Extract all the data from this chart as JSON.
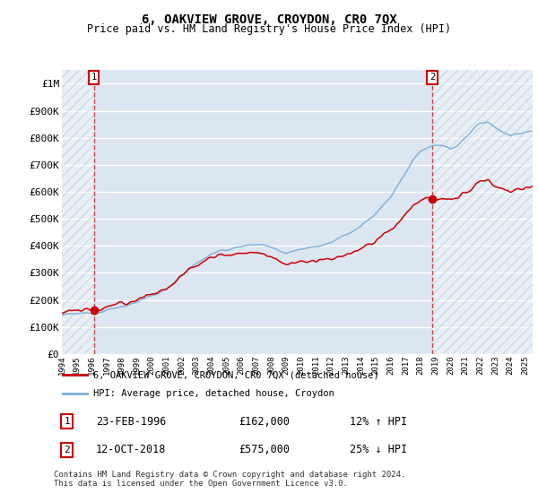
{
  "title": "6, OAKVIEW GROVE, CROYDON, CR0 7QX",
  "subtitle": "Price paid vs. HM Land Registry's House Price Index (HPI)",
  "ylabel_ticks": [
    "£0",
    "£100K",
    "£200K",
    "£300K",
    "£400K",
    "£500K",
    "£600K",
    "£700K",
    "£800K",
    "£900K",
    "£1M"
  ],
  "ytick_values": [
    0,
    100000,
    200000,
    300000,
    400000,
    500000,
    600000,
    700000,
    800000,
    900000,
    1000000
  ],
  "ylim": [
    0,
    1050000
  ],
  "bg_color": "#dce6f1",
  "hatch_color": "#c5d5e8",
  "grid_color": "#ffffff",
  "red_line_color": "#cc0000",
  "blue_line_color": "#7aaed6",
  "sale1_year": 1996.14,
  "sale1_price": 162000,
  "sale2_year": 2018.79,
  "sale2_price": 575000,
  "legend_label_red": "6, OAKVIEW GROVE, CROYDON, CR0 7QX (detached house)",
  "legend_label_blue": "HPI: Average price, detached house, Croydon",
  "note1_date": "23-FEB-1996",
  "note1_price": "£162,000",
  "note1_hpi": "12% ↑ HPI",
  "note2_date": "12-OCT-2018",
  "note2_price": "£575,000",
  "note2_hpi": "25% ↓ HPI",
  "footer": "Contains HM Land Registry data © Crown copyright and database right 2024.\nThis data is licensed under the Open Government Licence v3.0.",
  "xmin": 1994,
  "xmax": 2025.5
}
